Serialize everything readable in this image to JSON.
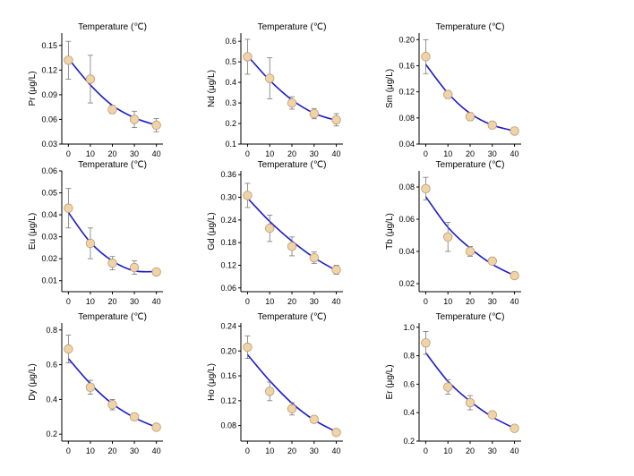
{
  "chart_data": [
    {
      "type": "scatter",
      "title": "Temperature (℃)",
      "ylabel": "Pr (μg/L)",
      "x": [
        0,
        10,
        20,
        30,
        40
      ],
      "xlim": [
        -3,
        43
      ],
      "ylim": [
        0.03,
        0.165
      ],
      "yticks": [
        "0.03",
        "0.06",
        "0.09",
        "0.12",
        "0.15"
      ],
      "values": [
        0.132,
        0.109,
        0.072,
        0.06,
        0.053
      ],
      "err": [
        0.023,
        0.029,
        0.005,
        0.01,
        0.008
      ],
      "fit": [
        0.134,
        0.102,
        0.077,
        0.062,
        0.053
      ],
      "colors": {
        "marker": "#f0d3a6",
        "marker_edge": "#b99b75",
        "fit": "#1a1acc"
      }
    },
    {
      "type": "scatter",
      "title": "Temperature (℃)",
      "ylabel": "Nd (μg/L)",
      "x": [
        0,
        10,
        20,
        30,
        40
      ],
      "xlim": [
        -3,
        43
      ],
      "ylim": [
        0.1,
        0.64
      ],
      "yticks": [
        "0.1",
        "0.2",
        "0.3",
        "0.4",
        "0.5",
        "0.6"
      ],
      "values": [
        0.525,
        0.42,
        0.3,
        0.248,
        0.218
      ],
      "err": [
        0.085,
        0.1,
        0.03,
        0.025,
        0.03
      ],
      "fit": [
        0.53,
        0.41,
        0.315,
        0.25,
        0.215
      ],
      "colors": {
        "marker": "#f0d3a6",
        "marker_edge": "#b99b75",
        "fit": "#1a1acc"
      }
    },
    {
      "type": "scatter",
      "title": "Temperature (℃)",
      "ylabel": "Sm (μg/L)",
      "x": [
        0,
        10,
        20,
        30,
        40
      ],
      "xlim": [
        -3,
        43
      ],
      "ylim": [
        0.04,
        0.21
      ],
      "yticks": [
        "0.04",
        "0.08",
        "0.12",
        "0.16",
        "0.20"
      ],
      "values": [
        0.174,
        0.116,
        0.082,
        0.069,
        0.06
      ],
      "err": [
        0.026,
        0.006,
        0.006,
        0.004,
        0.004
      ],
      "fit": [
        0.162,
        0.118,
        0.087,
        0.069,
        0.06
      ],
      "colors": {
        "marker": "#f0d3a6",
        "marker_edge": "#b99b75",
        "fit": "#1a1acc"
      }
    },
    {
      "type": "scatter",
      "title": "Temperature (℃)",
      "ylabel": "Eu (μg/L)",
      "x": [
        0,
        10,
        20,
        30,
        40
      ],
      "xlim": [
        -3,
        43
      ],
      "ylim": [
        0.005,
        0.06
      ],
      "yticks": [
        "0.01",
        "0.02",
        "0.03",
        "0.04",
        "0.05",
        "0.06"
      ],
      "values": [
        0.043,
        0.027,
        0.018,
        0.016,
        0.014
      ],
      "err": [
        0.009,
        0.007,
        0.003,
        0.003,
        0.001
      ],
      "fit": [
        0.041,
        0.0275,
        0.019,
        0.0145,
        0.0142
      ],
      "colors": {
        "marker": "#f0d3a6",
        "marker_edge": "#b99b75",
        "fit": "#1a1acc"
      }
    },
    {
      "type": "scatter",
      "title": "Temperature (℃)",
      "ylabel": "Gd (μg/L)",
      "x": [
        0,
        10,
        20,
        30,
        40
      ],
      "xlim": [
        -3,
        43
      ],
      "ylim": [
        0.05,
        0.37
      ],
      "yticks": [
        "0.06",
        "0.12",
        "0.18",
        "0.24",
        "0.30",
        "0.36"
      ],
      "values": [
        0.305,
        0.218,
        0.17,
        0.14,
        0.108
      ],
      "err": [
        0.032,
        0.035,
        0.025,
        0.015,
        0.012
      ],
      "fit": [
        0.298,
        0.236,
        0.184,
        0.14,
        0.106
      ],
      "colors": {
        "marker": "#f0d3a6",
        "marker_edge": "#b99b75",
        "fit": "#1a1acc"
      }
    },
    {
      "type": "scatter",
      "title": "Temperature (℃)",
      "ylabel": "Tb (μg/L)",
      "x": [
        0,
        10,
        20,
        30,
        40
      ],
      "xlim": [
        -3,
        43
      ],
      "ylim": [
        0.015,
        0.09
      ],
      "yticks": [
        "0.02",
        "0.04",
        "0.06",
        "0.08"
      ],
      "values": [
        0.079,
        0.049,
        0.04,
        0.034,
        0.025
      ],
      "err": [
        0.007,
        0.009,
        0.003,
        0.002,
        0.001
      ],
      "fit": [
        0.074,
        0.055,
        0.042,
        0.032,
        0.025
      ],
      "colors": {
        "marker": "#f0d3a6",
        "marker_edge": "#b99b75",
        "fit": "#1a1acc"
      }
    },
    {
      "type": "scatter",
      "title": "Temperature (℃)",
      "ylabel": "Dy (μg/L)",
      "x": [
        0,
        10,
        20,
        30,
        40
      ],
      "xlim": [
        -3,
        43
      ],
      "ylim": [
        0.16,
        0.84
      ],
      "yticks": [
        "0.2",
        "0.4",
        "0.6",
        "0.8"
      ],
      "values": [
        0.69,
        0.47,
        0.37,
        0.3,
        0.24
      ],
      "err": [
        0.08,
        0.04,
        0.03,
        0.015,
        0.015
      ],
      "fit": [
        0.635,
        0.49,
        0.375,
        0.295,
        0.24
      ],
      "colors": {
        "marker": "#f0d3a6",
        "marker_edge": "#b99b75",
        "fit": "#1a1acc"
      }
    },
    {
      "type": "scatter",
      "title": "Temperature (℃)",
      "ylabel": "Ho (μg/L)",
      "x": [
        0,
        10,
        20,
        30,
        40
      ],
      "xlim": [
        -3,
        43
      ],
      "ylim": [
        0.055,
        0.245
      ],
      "yticks": [
        "0.08",
        "0.12",
        "0.16",
        "0.20",
        "0.24"
      ],
      "values": [
        0.206,
        0.135,
        0.107,
        0.09,
        0.069
      ],
      "err": [
        0.018,
        0.015,
        0.01,
        0.005,
        0.002
      ],
      "fit": [
        0.194,
        0.152,
        0.116,
        0.089,
        0.07
      ],
      "colors": {
        "marker": "#f0d3a6",
        "marker_edge": "#b99b75",
        "fit": "#1a1acc"
      }
    },
    {
      "type": "scatter",
      "title": "Temperature (℃)",
      "ylabel": "Er (μg/L)",
      "x": [
        0,
        10,
        20,
        30,
        40
      ],
      "xlim": [
        -3,
        43
      ],
      "ylim": [
        0.2,
        1.03
      ],
      "yticks": [
        "0.2",
        "0.4",
        "0.6",
        "0.8",
        "1.0"
      ],
      "values": [
        0.89,
        0.58,
        0.47,
        0.385,
        0.29
      ],
      "err": [
        0.08,
        0.05,
        0.05,
        0.02,
        0.01
      ],
      "fit": [
        0.82,
        0.62,
        0.48,
        0.37,
        0.29
      ],
      "colors": {
        "marker": "#f0d3a6",
        "marker_edge": "#b99b75",
        "fit": "#1a1acc"
      }
    }
  ]
}
